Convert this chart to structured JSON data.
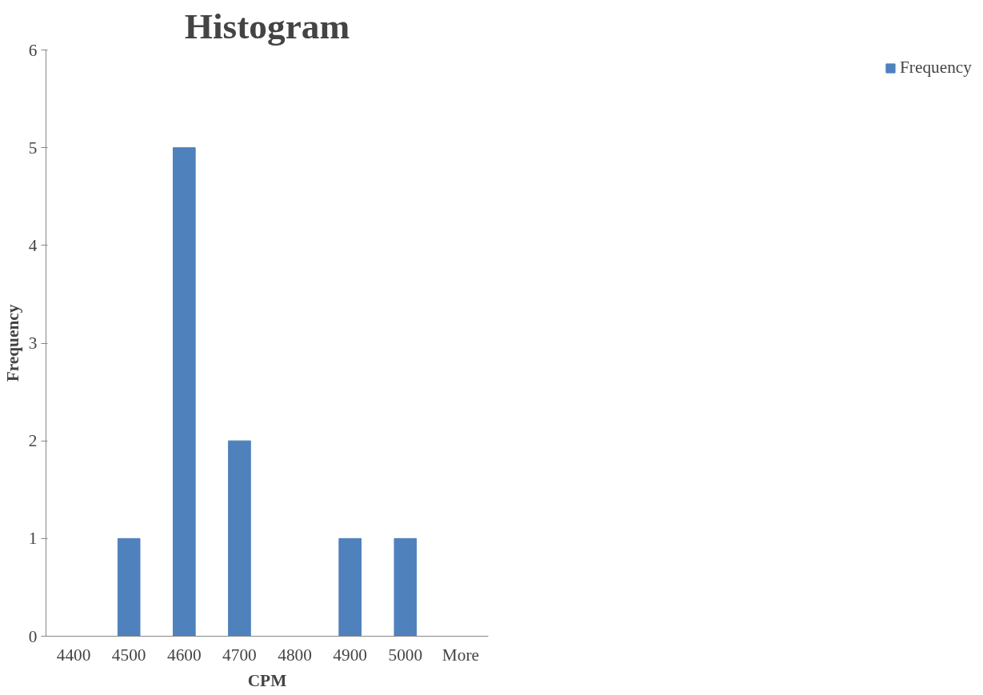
{
  "chart_data": {
    "type": "bar",
    "title": "Histogram",
    "xlabel": "CPM",
    "ylabel": "Frequency",
    "categories": [
      "4400",
      "4500",
      "4600",
      "4700",
      "4800",
      "4900",
      "5000",
      "More"
    ],
    "series": [
      {
        "name": "Frequency",
        "color": "#4f81bd",
        "values": [
          0,
          1,
          5,
          2,
          0,
          1,
          1,
          0
        ]
      }
    ],
    "ylim": [
      0,
      6
    ],
    "yticks": [
      0,
      1,
      2,
      3,
      4,
      5,
      6
    ],
    "grid": false,
    "legend": "right"
  }
}
